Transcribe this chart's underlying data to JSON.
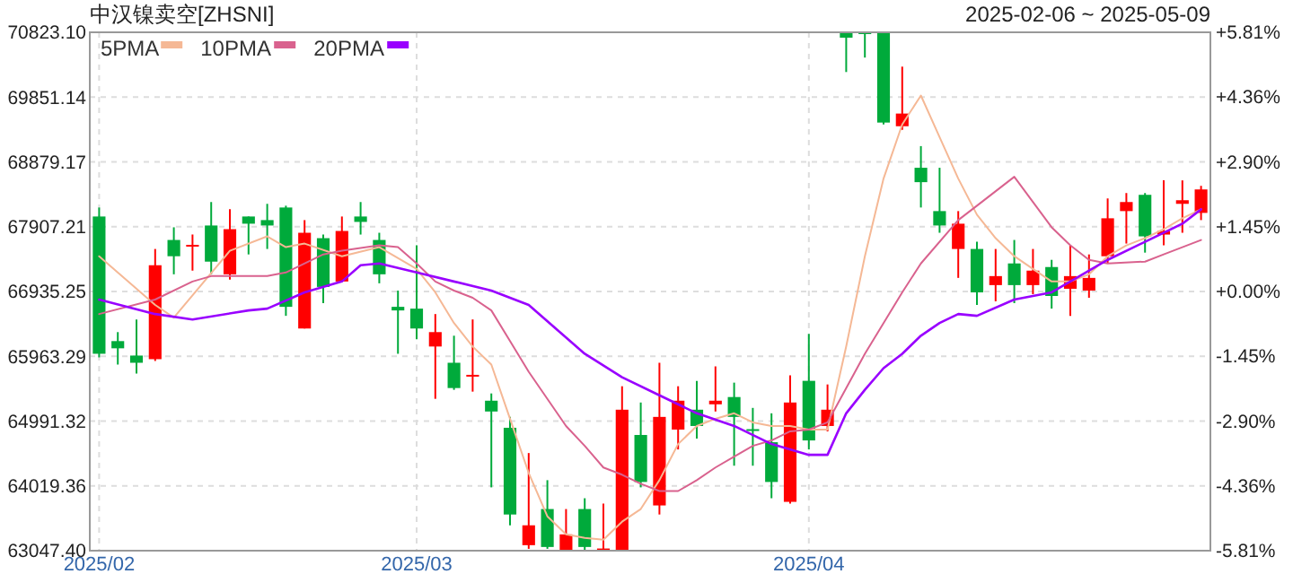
{
  "chart_data": {
    "type": "candlestick",
    "title": "中汉镍卖空[ZHSNI]",
    "subtitle": "2025-02-06 ~ 2025-05-09",
    "categories": [
      "2025/02",
      null,
      null,
      null,
      null,
      null,
      null,
      null,
      null,
      null,
      null,
      null,
      null,
      null,
      null,
      null,
      null,
      "2025/03",
      null,
      null,
      null,
      null,
      null,
      null,
      null,
      null,
      null,
      null,
      null,
      null,
      null,
      null,
      null,
      null,
      null,
      null,
      null,
      null,
      "2025/04",
      null,
      null,
      null,
      null,
      null,
      null,
      null,
      null,
      null,
      null,
      null,
      null,
      null,
      null,
      null,
      null,
      null,
      null,
      null,
      null,
      null
    ],
    "ohlc": [
      [
        68060,
        68195,
        65947,
        66001
      ],
      [
        66191,
        66326,
        65839,
        66083
      ],
      [
        65974,
        66516,
        65704,
        65866
      ],
      [
        65920,
        67573,
        65893,
        67329
      ],
      [
        67708,
        67898,
        67193,
        67464
      ],
      [
        67620,
        67790,
        67248,
        67635
      ],
      [
        67925,
        68277,
        67193,
        67383
      ],
      [
        67193,
        68168,
        67112,
        67870
      ],
      [
        68060,
        68060,
        67491,
        67952
      ],
      [
        68006,
        68250,
        67573,
        67925
      ],
      [
        68195,
        68222,
        66570,
        66705
      ],
      [
        66380,
        68006,
        66380,
        67816
      ],
      [
        67735,
        67789,
        66760,
        67004
      ],
      [
        67085,
        68060,
        67085,
        67843
      ],
      [
        68060,
        68277,
        67789,
        67979
      ],
      [
        67708,
        67816,
        67058,
        67193
      ],
      [
        66705,
        66949,
        66001,
        66651
      ],
      [
        66678,
        67627,
        66218,
        66380
      ],
      [
        66110,
        66597,
        65325,
        66326
      ],
      [
        65866,
        66272,
        65460,
        65487
      ],
      [
        65670,
        66516,
        65433,
        65685
      ],
      [
        65297,
        65406,
        63997,
        65135
      ],
      [
        64891,
        65054,
        63428,
        63590
      ],
      [
        63130,
        64512,
        63075,
        63428
      ],
      [
        63672,
        64105,
        63075,
        63103
      ],
      [
        63047.4,
        63672,
        63047.4,
        63292
      ],
      [
        63672,
        63834,
        63047.4,
        63103
      ],
      [
        63070,
        63753,
        63047.4,
        63080
      ],
      [
        63047.4,
        65514,
        63047.4,
        65162
      ],
      [
        64783,
        65270,
        63997,
        64078
      ],
      [
        63726,
        65866,
        63590,
        65054
      ],
      [
        64864,
        65514,
        64566,
        65297
      ],
      [
        65162,
        65595,
        64729,
        64918
      ],
      [
        65243,
        65812,
        65135,
        65297
      ],
      [
        65352,
        65568,
        64322,
        65054
      ],
      [
        64870,
        65189,
        64322,
        64860
      ],
      [
        64674,
        65108,
        63834,
        64078
      ],
      [
        63780,
        65676,
        63753,
        65270
      ],
      [
        65595,
        66299,
        64566,
        64701
      ],
      [
        64918,
        65541,
        64837,
        65162
      ],
      [
        70823.1,
        70823.1,
        70227,
        70742
      ],
      [
        70823.1,
        70823.1,
        70444,
        70800
      ],
      [
        70823.1,
        70823.1,
        69441,
        69469
      ],
      [
        69414,
        70308,
        69360,
        69604
      ],
      [
        68791,
        69116,
        68195,
        68575
      ],
      [
        68141,
        68791,
        67816,
        67925
      ],
      [
        67573,
        68141,
        67139,
        67952
      ],
      [
        67573,
        67681,
        66733,
        66922
      ],
      [
        67031,
        67573,
        66787,
        67166
      ],
      [
        67356,
        67708,
        66760,
        67031
      ],
      [
        67031,
        67573,
        66895,
        67248
      ],
      [
        67302,
        67410,
        66678,
        66868
      ],
      [
        66976,
        67627,
        66570,
        67166
      ],
      [
        66949,
        67491,
        66841,
        67139
      ],
      [
        67464,
        68331,
        67356,
        68033
      ],
      [
        68141,
        68412,
        67654,
        68277
      ],
      [
        68385,
        68412,
        67518,
        67762
      ],
      [
        67789,
        68602,
        67627,
        67843
      ],
      [
        68250,
        68602,
        67816,
        68304
      ],
      [
        68114,
        68520,
        68006,
        68466
      ]
    ],
    "colors": [
      "#00aa3b",
      "#00aa3b",
      "#00aa3b",
      "#ff0000",
      "#00aa3b",
      "#ff0000",
      "#00aa3b",
      "#ff0000",
      "#00aa3b",
      "#00aa3b",
      "#00aa3b",
      "#ff0000",
      "#00aa3b",
      "#ff0000",
      "#00aa3b",
      "#00aa3b",
      "#00aa3b",
      "#00aa3b",
      "#ff0000",
      "#00aa3b",
      "#ff0000",
      "#00aa3b",
      "#00aa3b",
      "#ff0000",
      "#00aa3b",
      "#ff0000",
      "#00aa3b",
      "#ff0000",
      "#ff0000",
      "#00aa3b",
      "#ff0000",
      "#ff0000",
      "#00aa3b",
      "#ff0000",
      "#00aa3b",
      "#00aa3b",
      "#00aa3b",
      "#ff0000",
      "#00aa3b",
      "#ff0000",
      "#00aa3b",
      "#00aa3b",
      "#00aa3b",
      "#ff0000",
      "#00aa3b",
      "#00aa3b",
      "#ff0000",
      "#00aa3b",
      "#ff0000",
      "#00aa3b",
      "#ff0000",
      "#00aa3b",
      "#ff0000",
      "#ff0000",
      "#ff0000",
      "#ff0000",
      "#00aa3b",
      "#ff0000",
      "#ff0000",
      "#ff0000"
    ],
    "series": [
      {
        "type": "line",
        "name": "5PMA",
        "color": "#f5b895",
        "values": [
          67464,
          null,
          null,
          66733,
          66543,
          null,
          null,
          67546,
          null,
          67762,
          67600,
          67654,
          null,
          67464,
          null,
          67600,
          null,
          67274,
          66922,
          66462,
          66110,
          65839,
          65026,
          64214,
          63563,
          63292,
          63238,
          63211,
          63482,
          63672,
          64105,
          64647,
          64918,
          65026,
          65108,
          64972,
          64918,
          64918,
          64864,
          64864,
          66110,
          67464,
          68629,
          69441,
          69875,
          69252,
          68629,
          68087,
          67735,
          67464,
          67274,
          67085,
          67085,
          67193,
          67464,
          67627,
          67735,
          67870,
          68033,
          68168
        ]
      },
      {
        "type": "line",
        "name": "10PMA",
        "color": "#d9628e",
        "values": [
          66597,
          null,
          null,
          66814,
          null,
          67085,
          67166,
          null,
          null,
          67166,
          67220,
          null,
          67491,
          67546,
          null,
          67627,
          67600,
          67356,
          67085,
          66949,
          66841,
          66651,
          66191,
          65731,
          65325,
          64918,
          64620,
          64295,
          64187,
          64051,
          63942,
          63942,
          64105,
          64295,
          64458,
          64620,
          64701,
          64837,
          64864,
          64972,
          null,
          66001,
          null,
          66922,
          67356,
          null,
          68006,
          68222,
          null,
          68656,
          null,
          67898,
          67627,
          67410,
          67356,
          null,
          67383,
          67491,
          null,
          67708
        ]
      },
      {
        "type": "line",
        "name": "20PMA",
        "color": "#9900ff",
        "values": [
          66814,
          null,
          null,
          66597,
          null,
          66516,
          null,
          null,
          66651,
          66678,
          null,
          66922,
          null,
          67085,
          67329,
          67356,
          null,
          67220,
          null,
          67085,
          null,
          66949,
          null,
          66733,
          null,
          null,
          66001,
          null,
          65649,
          null,
          65378,
          null,
          65108,
          null,
          64918,
          null,
          64647,
          null,
          64485,
          64485,
          65108,
          65460,
          65785,
          66001,
          66272,
          66462,
          66597,
          66570,
          null,
          66814,
          null,
          66922,
          67085,
          null,
          67410,
          null,
          67681,
          null,
          67952,
          68168
        ]
      }
    ],
    "ylim": [
      63047.4,
      70823.1
    ],
    "yticks": [
      {
        "value": 63047.4,
        "label": "63047.40"
      },
      64019.36,
      64991.32,
      65963.29,
      66935.25,
      67907.21,
      68879.17,
      69851.14,
      {
        "value": 70823.1,
        "label": "70823.10"
      }
    ],
    "y2lim": [
      -5.81,
      5.81
    ],
    "y2ticks": [
      {
        "value": -5.81,
        "label": "-5.81%"
      },
      {
        "value": -4.36,
        "label": "-4.36%"
      },
      {
        "value": -2.9,
        "label": "-2.90%"
      },
      {
        "value": -1.45,
        "label": "-1.45%"
      },
      {
        "value": 0,
        "label": "+0.00%"
      },
      {
        "value": 1.45,
        "label": "+1.45%"
      },
      {
        "value": 2.9,
        "label": "+2.90%"
      },
      {
        "value": 4.36,
        "label": "+4.36%"
      },
      {
        "value": 5.81,
        "label": "+5.81%"
      }
    ],
    "grid": true,
    "legend": "top left",
    "line_style": "solid",
    "marker": "none"
  }
}
